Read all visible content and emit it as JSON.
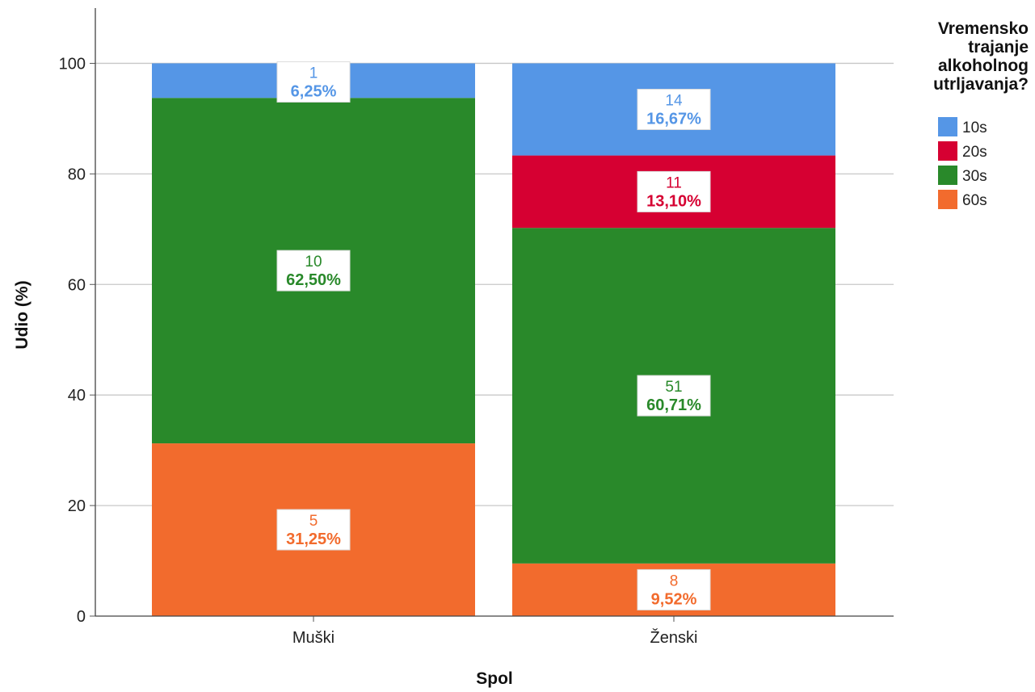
{
  "chart_data": {
    "type": "bar",
    "stacked": true,
    "categories": [
      "Muški",
      "Ženski"
    ],
    "xlabel": "Spol",
    "ylabel": "Udio (%)",
    "ylim": [
      0,
      110
    ],
    "yticks": [
      "0",
      "20",
      "40",
      "60",
      "80",
      "100"
    ],
    "grid": true,
    "legend": {
      "title": [
        "Vremensko",
        "trajanje",
        "alkoholnog",
        "utrljavanja?"
      ],
      "placement": "top-right"
    },
    "series": [
      {
        "name": "10s",
        "color": "#5596e6",
        "values": [
          6.25,
          16.67
        ],
        "counts": [
          "1",
          "14"
        ],
        "labels": [
          "6,25%",
          "16,67%"
        ]
      },
      {
        "name": "20s",
        "color": "#d60032",
        "values": [
          0,
          13.1
        ],
        "counts": [
          "",
          "11"
        ],
        "labels": [
          "",
          "13,10%"
        ]
      },
      {
        "name": "30s",
        "color": "#29892a",
        "values": [
          62.5,
          60.71
        ],
        "counts": [
          "10",
          "51"
        ],
        "labels": [
          "62,50%",
          "60,71%"
        ]
      },
      {
        "name": "60s",
        "color": "#f26b2d",
        "values": [
          31.25,
          9.52
        ],
        "counts": [
          "5",
          "8"
        ],
        "labels": [
          "31,25%",
          "9,52%"
        ]
      }
    ]
  }
}
